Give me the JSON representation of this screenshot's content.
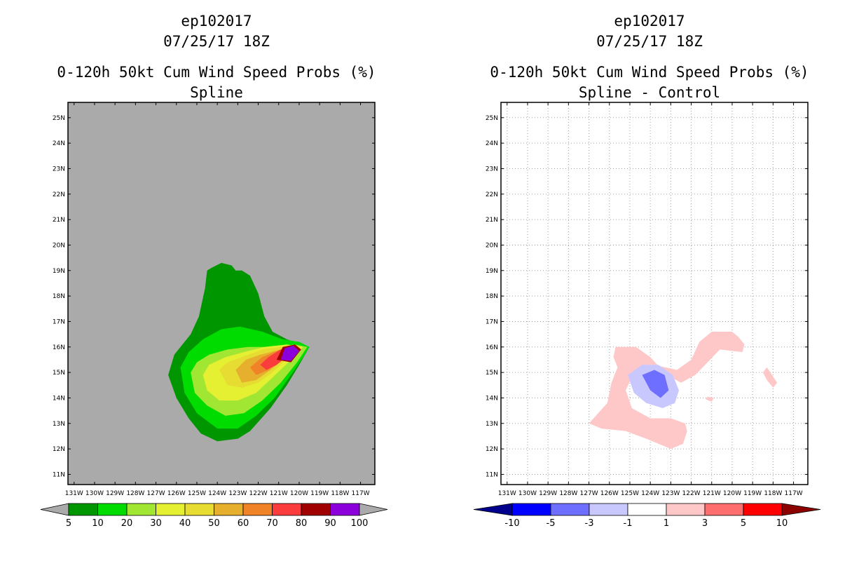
{
  "chart_data": [
    {
      "type": "contour",
      "title_lines": [
        "ep102017",
        "07/25/17 18Z",
        "0-120h 50kt Cum Wind Speed Probs (%)",
        "Spline"
      ],
      "x_ticks": [
        "131W",
        "130W",
        "129W",
        "128W",
        "127W",
        "126W",
        "125W",
        "124W",
        "123W",
        "122W",
        "121W",
        "120W",
        "119W",
        "118W",
        "117W"
      ],
      "y_ticks": [
        "11N",
        "12N",
        "13N",
        "14N",
        "15N",
        "16N",
        "17N",
        "18N",
        "19N",
        "20N",
        "21N",
        "22N",
        "23N",
        "24N",
        "25N"
      ],
      "xlim": [
        -131.3,
        -116.3
      ],
      "ylim": [
        10.6,
        25.6
      ],
      "background": "#aaaaaa",
      "grid": false,
      "colorbar": {
        "levels": [
          "5",
          "10",
          "20",
          "30",
          "40",
          "50",
          "60",
          "70",
          "80",
          "90",
          "100"
        ],
        "colors": [
          "#009600",
          "#00dc00",
          "#a0e632",
          "#e6f032",
          "#e6dc32",
          "#e6af2d",
          "#f08228",
          "#fa3c3c",
          "#a00000",
          "#8c00dc"
        ],
        "low_extend_color": "#aaaaaa",
        "high_extend_color": "#aaaaaa"
      },
      "contours": [
        {
          "level": "5",
          "color": "#009600",
          "points": [
            [
              -124.3,
              19.1
            ],
            [
              -123.8,
              19.3
            ],
            [
              -123.3,
              19.2
            ],
            [
              -123.1,
              19.0
            ],
            [
              -122.8,
              19.0
            ],
            [
              -122.4,
              18.8
            ],
            [
              -122.0,
              18.1
            ],
            [
              -121.7,
              17.2
            ],
            [
              -121.3,
              16.6
            ],
            [
              -120.6,
              16.3
            ],
            [
              -119.5,
              16.0
            ],
            [
              -120.0,
              15.3
            ],
            [
              -120.6,
              14.5
            ],
            [
              -121.4,
              13.6
            ],
            [
              -122.4,
              12.7
            ],
            [
              -123.0,
              12.4
            ],
            [
              -124.0,
              12.3
            ],
            [
              -124.8,
              12.6
            ],
            [
              -125.4,
              13.2
            ],
            [
              -126.0,
              14.0
            ],
            [
              -126.4,
              14.9
            ],
            [
              -126.1,
              15.7
            ],
            [
              -125.3,
              16.5
            ],
            [
              -124.9,
              17.2
            ],
            [
              -124.6,
              18.3
            ],
            [
              -124.5,
              19.0
            ]
          ]
        },
        {
          "level": "10",
          "color": "#00dc00",
          "points": [
            [
              -125.8,
              15.2
            ],
            [
              -125.6,
              14.2
            ],
            [
              -125.0,
              13.4
            ],
            [
              -124.0,
              12.8
            ],
            [
              -123.0,
              12.8
            ],
            [
              -122.1,
              13.3
            ],
            [
              -121.2,
              14.0
            ],
            [
              -120.4,
              14.9
            ],
            [
              -119.8,
              15.6
            ],
            [
              -119.5,
              16.0
            ],
            [
              -120.0,
              16.2
            ],
            [
              -120.8,
              16.3
            ],
            [
              -121.8,
              16.6
            ],
            [
              -122.9,
              16.8
            ],
            [
              -123.8,
              16.7
            ],
            [
              -124.7,
              16.3
            ],
            [
              -125.4,
              15.8
            ]
          ]
        },
        {
          "level": "20",
          "color": "#a0e632",
          "points": [
            [
              -125.3,
              15.0
            ],
            [
              -125.1,
              14.2
            ],
            [
              -124.5,
              13.7
            ],
            [
              -123.6,
              13.3
            ],
            [
              -122.7,
              13.4
            ],
            [
              -121.8,
              13.9
            ],
            [
              -120.9,
              14.6
            ],
            [
              -120.1,
              15.4
            ],
            [
              -119.6,
              16.0
            ],
            [
              -120.2,
              16.1
            ],
            [
              -121.3,
              16.0
            ],
            [
              -122.5,
              16.0
            ],
            [
              -123.5,
              15.9
            ],
            [
              -124.4,
              15.7
            ],
            [
              -125.0,
              15.4
            ]
          ]
        },
        {
          "level": "30",
          "color": "#e6f032",
          "points": [
            [
              -124.7,
              14.9
            ],
            [
              -124.5,
              14.3
            ],
            [
              -123.9,
              13.9
            ],
            [
              -123.0,
              13.9
            ],
            [
              -122.1,
              14.2
            ],
            [
              -121.3,
              14.8
            ],
            [
              -120.4,
              15.5
            ],
            [
              -119.8,
              16.0
            ],
            [
              -120.6,
              16.1
            ],
            [
              -121.7,
              16.0
            ],
            [
              -122.7,
              15.8
            ],
            [
              -123.6,
              15.6
            ],
            [
              -124.4,
              15.3
            ]
          ]
        },
        {
          "level": "40",
          "color": "#e6dc32",
          "points": [
            [
              -123.9,
              15.1
            ],
            [
              -123.5,
              14.5
            ],
            [
              -122.8,
              14.4
            ],
            [
              -122.0,
              14.6
            ],
            [
              -121.3,
              15.0
            ],
            [
              -120.5,
              15.6
            ],
            [
              -120.0,
              16.0
            ],
            [
              -120.9,
              16.0
            ],
            [
              -121.8,
              15.9
            ],
            [
              -122.8,
              15.6
            ],
            [
              -123.5,
              15.4
            ]
          ]
        },
        {
          "level": "50",
          "color": "#e6af2d",
          "points": [
            [
              -123.1,
              15.1
            ],
            [
              -122.8,
              14.6
            ],
            [
              -122.1,
              14.7
            ],
            [
              -121.4,
              15.1
            ],
            [
              -120.6,
              15.6
            ],
            [
              -120.1,
              16.0
            ],
            [
              -120.9,
              15.9
            ],
            [
              -121.9,
              15.7
            ],
            [
              -122.6,
              15.5
            ]
          ]
        },
        {
          "level": "60",
          "color": "#f08228",
          "points": [
            [
              -122.4,
              15.2
            ],
            [
              -122.1,
              14.9
            ],
            [
              -121.5,
              15.1
            ],
            [
              -120.8,
              15.5
            ],
            [
              -120.2,
              15.9
            ],
            [
              -120.9,
              15.9
            ],
            [
              -121.8,
              15.6
            ]
          ]
        },
        {
          "level": "70",
          "color": "#fa3c3c",
          "points": [
            [
              -121.9,
              15.3
            ],
            [
              -121.6,
              15.1
            ],
            [
              -121.1,
              15.3
            ],
            [
              -120.5,
              15.7
            ],
            [
              -120.2,
              16.0
            ],
            [
              -120.9,
              15.9
            ],
            [
              -121.5,
              15.6
            ]
          ]
        },
        {
          "level": "80",
          "color": "#a00000",
          "points": [
            [
              -121.1,
              15.5
            ],
            [
              -120.4,
              15.4
            ],
            [
              -119.9,
              15.9
            ],
            [
              -120.2,
              16.1
            ],
            [
              -120.8,
              16.0
            ]
          ]
        },
        {
          "level": "90",
          "color": "#8c00dc",
          "points": [
            [
              -120.9,
              15.5
            ],
            [
              -120.4,
              15.45
            ],
            [
              -120.0,
              15.85
            ],
            [
              -120.3,
              16.05
            ],
            [
              -120.7,
              15.95
            ]
          ]
        }
      ]
    },
    {
      "type": "contour",
      "title_lines": [
        "ep102017",
        "07/25/17 18Z",
        "0-120h 50kt Cum Wind Speed Probs (%)",
        "Spline - Control"
      ],
      "x_ticks": [
        "131W",
        "130W",
        "129W",
        "128W",
        "127W",
        "126W",
        "125W",
        "124W",
        "123W",
        "122W",
        "121W",
        "120W",
        "119W",
        "118W",
        "117W"
      ],
      "y_ticks": [
        "11N",
        "12N",
        "13N",
        "14N",
        "15N",
        "16N",
        "17N",
        "18N",
        "19N",
        "20N",
        "21N",
        "22N",
        "23N",
        "24N",
        "25N"
      ],
      "xlim": [
        -131.3,
        -116.3
      ],
      "ylim": [
        10.6,
        25.6
      ],
      "background": "#ffffff",
      "grid": true,
      "colorbar": {
        "levels": [
          "-10",
          "-5",
          "-3",
          "-1",
          "1",
          "3",
          "5",
          "10"
        ],
        "colors": [
          "#0000ff",
          "#6e6eff",
          "#c8c8ff",
          "#ffffff",
          "#ffc8c8",
          "#ff6e6e",
          "#ff0000"
        ],
        "low_extend_color": "#00008c",
        "high_extend_color": "#8c0000"
      },
      "contours": [
        {
          "level": "1",
          "color": "#ffc8c8",
          "points": [
            [
              -125.6,
              15.2
            ],
            [
              -125.9,
              14.6
            ],
            [
              -126.1,
              13.8
            ],
            [
              -127.0,
              13.0
            ],
            [
              -126.4,
              12.8
            ],
            [
              -125.2,
              12.7
            ],
            [
              -124.2,
              12.4
            ],
            [
              -123.0,
              12.0
            ],
            [
              -122.4,
              12.2
            ],
            [
              -122.2,
              12.7
            ],
            [
              -122.3,
              13.0
            ],
            [
              -123.0,
              13.2
            ],
            [
              -124.0,
              13.2
            ],
            [
              -124.9,
              13.6
            ],
            [
              -125.2,
              14.3
            ],
            [
              -124.8,
              15.0
            ],
            [
              -123.8,
              15.3
            ],
            [
              -122.7,
              15.1
            ],
            [
              -122.0,
              15.5
            ],
            [
              -121.6,
              16.2
            ],
            [
              -121.0,
              16.6
            ],
            [
              -120.0,
              16.6
            ],
            [
              -119.7,
              16.4
            ],
            [
              -119.4,
              16.1
            ],
            [
              -119.5,
              15.8
            ],
            [
              -120.6,
              15.9
            ],
            [
              -121.2,
              15.4
            ],
            [
              -121.8,
              14.9
            ],
            [
              -122.5,
              14.6
            ],
            [
              -123.2,
              14.9
            ],
            [
              -124.0,
              15.6
            ],
            [
              -124.7,
              16.0
            ],
            [
              -125.7,
              16.0
            ],
            [
              -125.8,
              15.6
            ]
          ]
        },
        {
          "level": "1",
          "color": "#ffc8c8",
          "points": [
            [
              -118.3,
              15.2
            ],
            [
              -117.8,
              14.6
            ],
            [
              -118.0,
              14.4
            ],
            [
              -118.3,
              14.7
            ],
            [
              -118.5,
              15.0
            ]
          ]
        },
        {
          "level": "1",
          "color": "#ffc8c8",
          "points": [
            [
              -121.2,
              14.05
            ],
            [
              -120.9,
              14.0
            ],
            [
              -121.0,
              13.85
            ],
            [
              -121.3,
              13.95
            ]
          ]
        },
        {
          "level": "-1",
          "color": "#c8c8ff",
          "points": [
            [
              -125.1,
              14.9
            ],
            [
              -124.8,
              14.2
            ],
            [
              -124.2,
              13.8
            ],
            [
              -123.4,
              13.6
            ],
            [
              -122.8,
              13.8
            ],
            [
              -122.6,
              14.3
            ],
            [
              -122.9,
              14.9
            ],
            [
              -123.6,
              15.3
            ],
            [
              -124.4,
              15.3
            ]
          ]
        },
        {
          "level": "-3",
          "color": "#6e6eff",
          "points": [
            [
              -124.4,
              14.9
            ],
            [
              -124.0,
              14.3
            ],
            [
              -123.5,
              14.0
            ],
            [
              -123.1,
              14.3
            ],
            [
              -123.3,
              14.9
            ],
            [
              -123.8,
              15.1
            ]
          ]
        }
      ]
    }
  ]
}
